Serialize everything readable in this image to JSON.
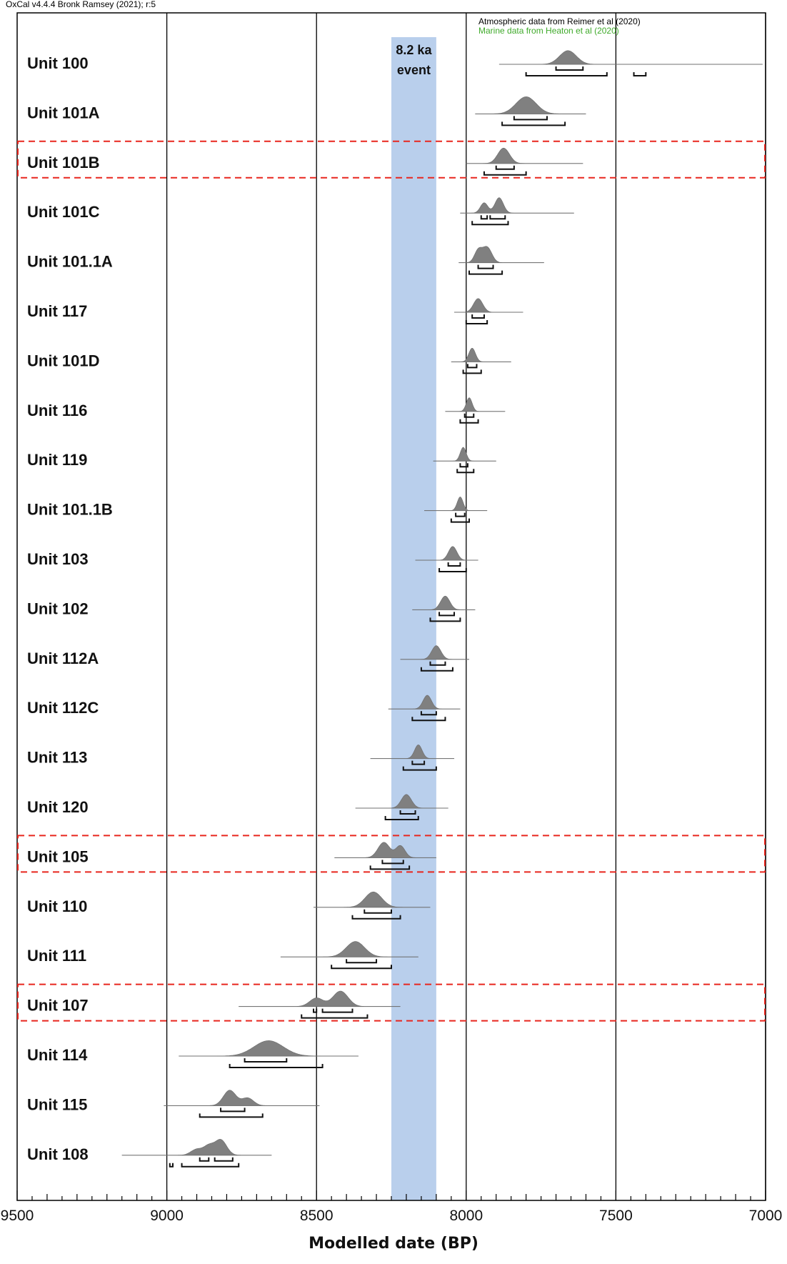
{
  "header": {
    "version": "OxCal v4.4.4 Bronk Ramsey (2021); r:5",
    "atmospheric_note": "Atmospheric data from Reimer et al (2020)",
    "marine_note": "Marine data from Heaton et al (2020)"
  },
  "colors": {
    "distribution_fill": "#808080",
    "event_band": "#b9cfec",
    "highlight_box": "#e8261e",
    "marine_text": "#3faa2a"
  },
  "chart_data": {
    "type": "ranges",
    "xlabel": "Modelled date (BP)",
    "xlim": [
      9500,
      7000
    ],
    "x_ticks": [
      9500,
      9000,
      8500,
      8000,
      7500,
      7000
    ],
    "x_minor_step": 50,
    "grid_lines": [
      9000,
      8500,
      8000,
      7500,
      7000
    ],
    "event": {
      "label_line1": "8.2 ka",
      "label_line2": "event",
      "from": 8250,
      "to": 8100
    },
    "highlighted_units": [
      "Unit 101B",
      "Unit 105",
      "Unit 107"
    ],
    "units": [
      {
        "name": "Unit 100",
        "peaks": [
          [
            7660,
            2.0,
            0.8
          ]
        ],
        "range68": [
          [
            7700,
            7610
          ]
        ],
        "range95": [
          [
            7800,
            7530
          ],
          [
            7440,
            7400
          ]
        ],
        "tail": [
          7890,
          7010
        ]
      },
      {
        "name": "Unit 101A",
        "peaks": [
          [
            7800,
            2.4,
            1.0
          ]
        ],
        "range68": [
          [
            7840,
            7730
          ]
        ],
        "range95": [
          [
            7880,
            7670
          ]
        ],
        "tail": [
          7970,
          7600
        ]
      },
      {
        "name": "Unit 101B",
        "peaks": [
          [
            7875,
            1.4,
            0.9
          ]
        ],
        "range68": [
          [
            7900,
            7840
          ]
        ],
        "range95": [
          [
            7940,
            7800
          ]
        ],
        "tail": [
          8000,
          7610
        ]
      },
      {
        "name": "Unit 101C",
        "peaks": [
          [
            7940,
            0.9,
            0.6
          ],
          [
            7890,
            1.0,
            0.9
          ]
        ],
        "range68": [
          [
            7950,
            7930
          ],
          [
            7920,
            7870
          ]
        ],
        "range95": [
          [
            7980,
            7860
          ]
        ],
        "tail": [
          8020,
          7640
        ]
      },
      {
        "name": "Unit 101.1A",
        "peaks": [
          [
            7960,
            0.9,
            0.7
          ],
          [
            7930,
            1.1,
            0.9
          ]
        ],
        "range68": [
          [
            7960,
            7910
          ]
        ],
        "range95": [
          [
            7990,
            7880
          ]
        ],
        "tail": [
          8025,
          7740
        ]
      },
      {
        "name": "Unit 117",
        "peaks": [
          [
            7960,
            1.1,
            0.8
          ]
        ],
        "range68": [
          [
            7980,
            7940
          ]
        ],
        "range95": [
          [
            8000,
            7930
          ]
        ],
        "tail": [
          8040,
          7810
        ]
      },
      {
        "name": "Unit 101D",
        "peaks": [
          [
            7980,
            0.8,
            0.8
          ]
        ],
        "range68": [
          [
            7995,
            7965
          ]
        ],
        "range95": [
          [
            8010,
            7950
          ]
        ],
        "tail": [
          8050,
          7850
        ]
      },
      {
        "name": "Unit 116",
        "peaks": [
          [
            7990,
            0.7,
            0.8
          ]
        ],
        "range68": [
          [
            8005,
            7975
          ]
        ],
        "range95": [
          [
            8020,
            7960
          ]
        ],
        "tail": [
          8070,
          7870
        ]
      },
      {
        "name": "Unit 119",
        "peaks": [
          [
            8010,
            0.7,
            0.8
          ]
        ],
        "range68": [
          [
            8020,
            7995
          ]
        ],
        "range95": [
          [
            8030,
            7975
          ]
        ],
        "tail": [
          8110,
          7900
        ]
      },
      {
        "name": "Unit 101.1B",
        "peaks": [
          [
            8020,
            0.7,
            0.8
          ]
        ],
        "range68": [
          [
            8035,
            8005
          ]
        ],
        "range95": [
          [
            8050,
            7990
          ]
        ],
        "tail": [
          8140,
          7930
        ]
      },
      {
        "name": "Unit 103",
        "peaks": [
          [
            8045,
            1.0,
            0.8
          ]
        ],
        "range68": [
          [
            8060,
            8020
          ]
        ],
        "range95": [
          [
            8090,
            8000
          ]
        ],
        "tail": [
          8170,
          7960
        ]
      },
      {
        "name": "Unit 102",
        "peaks": [
          [
            8070,
            1.1,
            0.8
          ]
        ],
        "range68": [
          [
            8090,
            8040
          ]
        ],
        "range95": [
          [
            8120,
            8020
          ]
        ],
        "tail": [
          8180,
          7970
        ]
      },
      {
        "name": "Unit 112A",
        "peaks": [
          [
            8100,
            1.1,
            0.8
          ]
        ],
        "range68": [
          [
            8120,
            8070
          ]
        ],
        "range95": [
          [
            8150,
            8045
          ]
        ],
        "tail": [
          8220,
          7990
        ]
      },
      {
        "name": "Unit 112C",
        "peaks": [
          [
            8130,
            1.0,
            0.8
          ]
        ],
        "range68": [
          [
            8150,
            8100
          ]
        ],
        "range95": [
          [
            8180,
            8070
          ]
        ],
        "tail": [
          8260,
          8020
        ]
      },
      {
        "name": "Unit 113",
        "peaks": [
          [
            8160,
            0.9,
            0.8
          ]
        ],
        "range68": [
          [
            8180,
            8140
          ]
        ],
        "range95": [
          [
            8210,
            8100
          ]
        ],
        "tail": [
          8320,
          8040
        ]
      },
      {
        "name": "Unit 120",
        "peaks": [
          [
            8200,
            1.2,
            0.8
          ]
        ],
        "range68": [
          [
            8220,
            8170
          ]
        ],
        "range95": [
          [
            8270,
            8160
          ]
        ],
        "tail": [
          8370,
          8060
        ]
      },
      {
        "name": "Unit 105",
        "peaks": [
          [
            8275,
            1.4,
            0.9
          ],
          [
            8220,
            1.1,
            0.7
          ]
        ],
        "range68": [
          [
            8280,
            8210
          ]
        ],
        "range95": [
          [
            8320,
            8190
          ]
        ],
        "tail": [
          8440,
          8100
        ]
      },
      {
        "name": "Unit 110",
        "peaks": [
          [
            8310,
            2.0,
            0.9
          ]
        ],
        "range68": [
          [
            8340,
            8250
          ]
        ],
        "range95": [
          [
            8380,
            8220
          ]
        ],
        "tail": [
          8510,
          8120
        ]
      },
      {
        "name": "Unit 111",
        "peaks": [
          [
            8370,
            2.2,
            0.9
          ]
        ],
        "range68": [
          [
            8400,
            8300
          ]
        ],
        "range95": [
          [
            8450,
            8250
          ]
        ],
        "tail": [
          8620,
          8160
        ]
      },
      {
        "name": "Unit 107",
        "peaks": [
          [
            8500,
            1.6,
            0.5
          ],
          [
            8420,
            1.8,
            0.9
          ]
        ],
        "range68": [
          [
            8510,
            8500
          ],
          [
            8480,
            8380
          ]
        ],
        "range95": [
          [
            8550,
            8330
          ]
        ],
        "tail": [
          8760,
          8220
        ]
      },
      {
        "name": "Unit 114",
        "peaks": [
          [
            8660,
            3.5,
            0.9
          ]
        ],
        "range68": [
          [
            8740,
            8600
          ]
        ],
        "range95": [
          [
            8790,
            8480
          ]
        ],
        "tail": [
          8960,
          8360
        ]
      },
      {
        "name": "Unit 115",
        "peaks": [
          [
            8790,
            1.5,
            0.9
          ],
          [
            8730,
            1.4,
            0.45
          ]
        ],
        "range68": [
          [
            8820,
            8740
          ]
        ],
        "range95": [
          [
            8890,
            8680
          ]
        ],
        "tail": [
          9010,
          8490
        ]
      },
      {
        "name": "Unit 108",
        "peaks": [
          [
            8900,
            1.4,
            0.35
          ],
          [
            8860,
            1.2,
            0.5
          ],
          [
            8820,
            1.4,
            0.9
          ]
        ],
        "range68": [
          [
            8890,
            8860
          ],
          [
            8840,
            8780
          ]
        ],
        "range95": [
          [
            8990,
            8980
          ],
          [
            8950,
            8760
          ]
        ],
        "tail": [
          9150,
          8650
        ]
      }
    ]
  }
}
